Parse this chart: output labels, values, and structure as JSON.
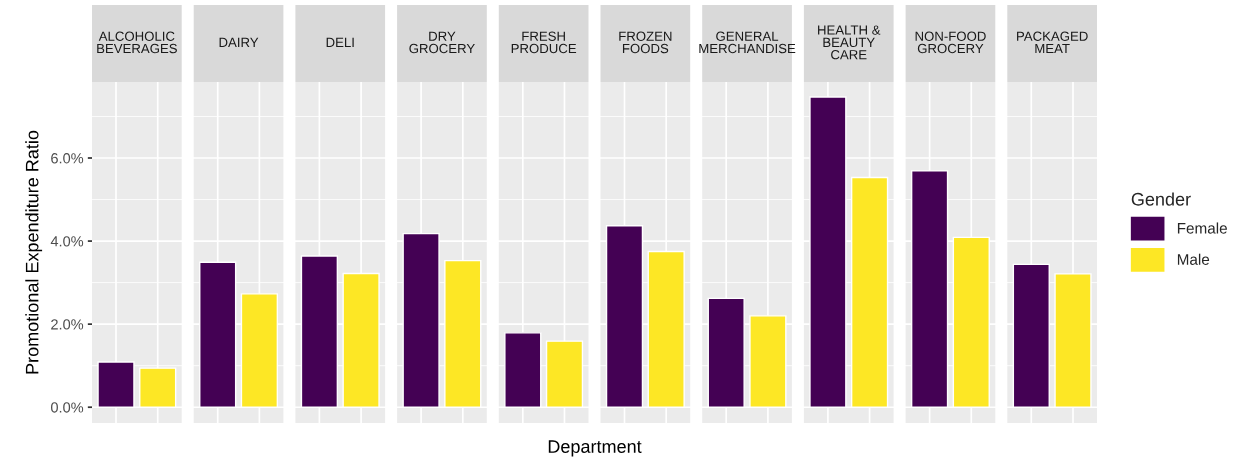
{
  "chart_data": {
    "type": "bar",
    "xlabel": "Department",
    "ylabel": "Promotional Expenditure Ratio",
    "legend_title": "Gender",
    "legend": "right",
    "grid": true,
    "categories": [
      "ALCOHOLIC\nBEVERAGES",
      "DAIRY",
      "DELI",
      "DRY\nGROCERY",
      "FRESH\nPRODUCE",
      "FROZEN\nFOODS",
      "GENERAL\nMERCHANDISE",
      "HEALTH &\nBEAUTY\nCARE",
      "NON-FOOD\nGROCERY",
      "PACKAGED\nMEAT"
    ],
    "ylim": [
      -0.38,
      7.83
    ],
    "yticks": [
      {
        "value": 0,
        "label": "0.0%"
      },
      {
        "value": 2,
        "label": "2.0%"
      },
      {
        "value": 4,
        "label": "4.0%"
      },
      {
        "value": 6,
        "label": "6.0%"
      }
    ],
    "series": [
      {
        "name": "Female",
        "color": "#440154",
        "values": [
          1.09,
          3.49,
          3.64,
          4.18,
          1.79,
          4.37,
          2.62,
          7.47,
          5.69,
          3.44
        ]
      },
      {
        "name": "Male",
        "color": "#fde725",
        "values": [
          0.94,
          2.73,
          3.22,
          3.53,
          1.59,
          3.75,
          2.2,
          5.53,
          4.09,
          3.21
        ]
      }
    ]
  }
}
